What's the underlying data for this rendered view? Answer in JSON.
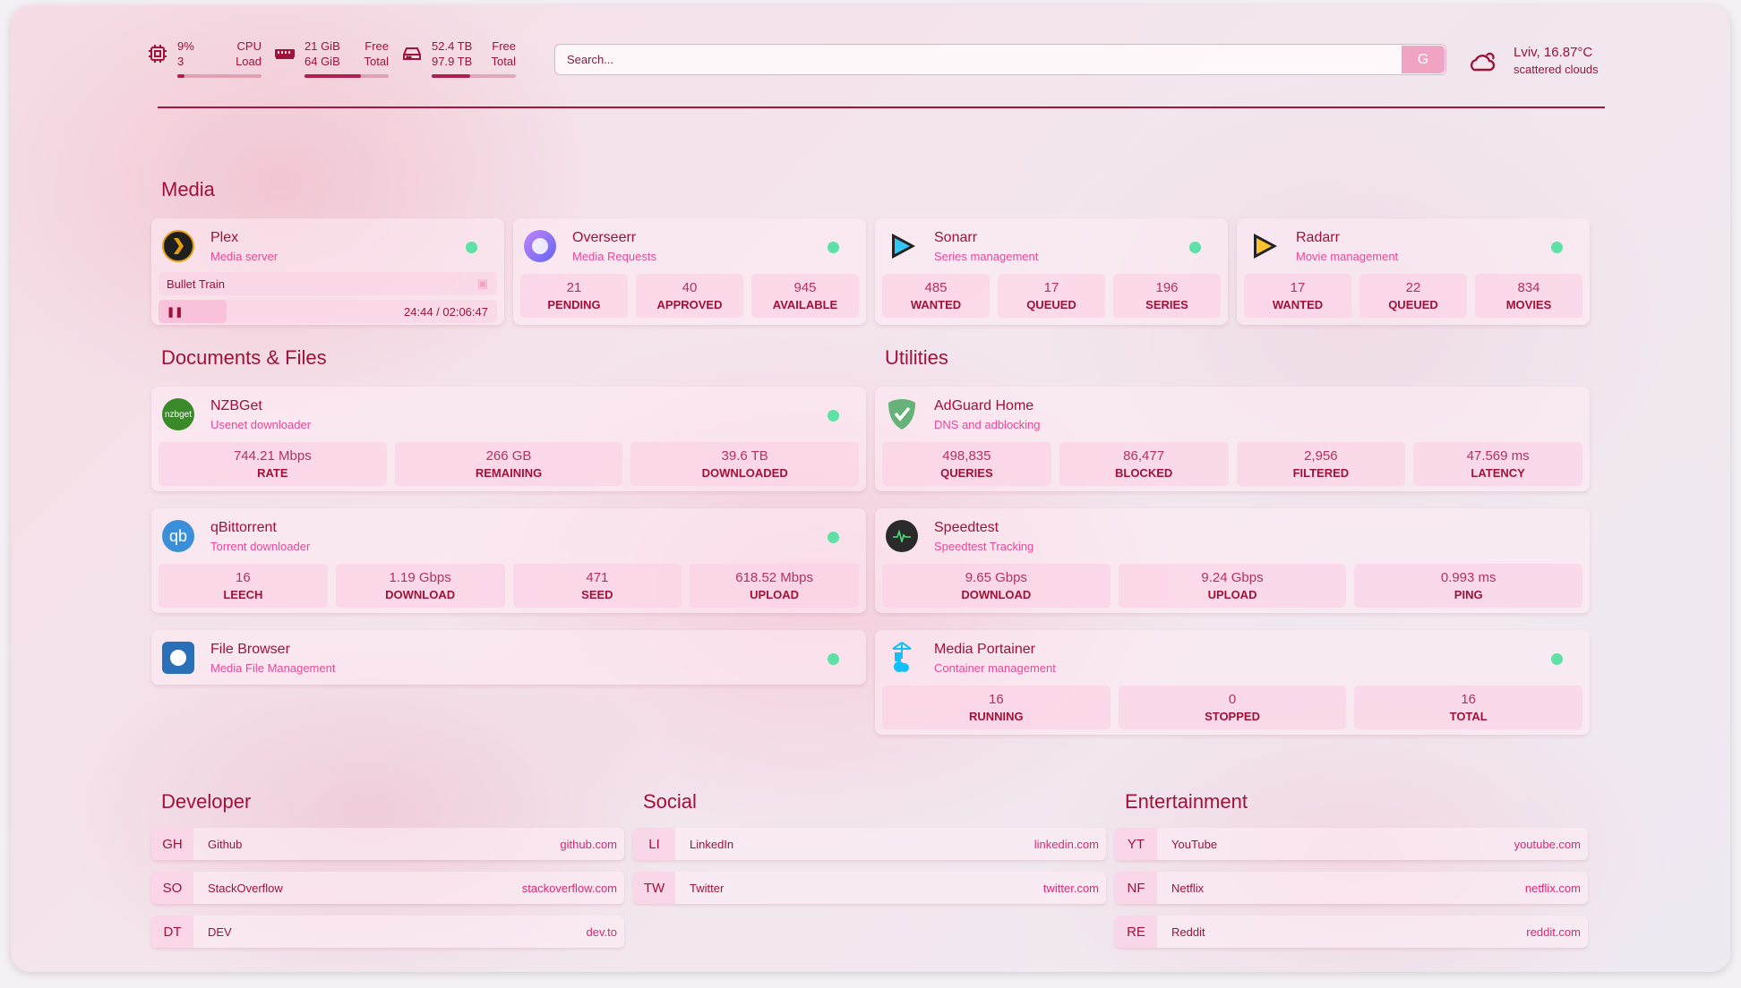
{
  "top": {
    "cpu": {
      "icon": "cpu-icon",
      "v1": "9%",
      "v2": "3",
      "k1": "CPU",
      "k2": "Load",
      "percent": 9
    },
    "mem": {
      "icon": "memory-icon",
      "v1": "21 GiB",
      "v2": "64 GiB",
      "k1": "Free",
      "k2": "Total",
      "percent": 67
    },
    "disk": {
      "icon": "disk-icon",
      "v1": "52.4 TB",
      "v2": "97.9 TB",
      "k1": "Free",
      "k2": "Total",
      "percent": 46
    },
    "search": {
      "placeholder": "Search...",
      "provider": "G"
    },
    "weather": {
      "icon": "cloud-icon",
      "location_temp": "Lviv, 16.87°C",
      "condition": "scattered clouds"
    }
  },
  "colors": {
    "accent": "#9f1239",
    "subtitle": "#ec4899",
    "status_ok": "#5fe0a6"
  },
  "groups": {
    "media": "Media",
    "docs": "Documents & Files",
    "utilities": "Utilities",
    "developer": "Developer",
    "social": "Social",
    "entertainment": "Entertainment"
  },
  "services": {
    "plex": {
      "name": "Plex",
      "desc": "Media server",
      "now_playing": "Bullet Train",
      "time": "24:44 / 02:06:47",
      "progress": 20
    },
    "overseerr": {
      "name": "Overseerr",
      "desc": "Media Requests",
      "stats": [
        {
          "v": "21",
          "k": "PENDING"
        },
        {
          "v": "40",
          "k": "APPROVED"
        },
        {
          "v": "945",
          "k": "AVAILABLE"
        }
      ]
    },
    "sonarr": {
      "name": "Sonarr",
      "desc": "Series management",
      "stats": [
        {
          "v": "485",
          "k": "WANTED"
        },
        {
          "v": "17",
          "k": "QUEUED"
        },
        {
          "v": "196",
          "k": "SERIES"
        }
      ]
    },
    "radarr": {
      "name": "Radarr",
      "desc": "Movie management",
      "stats": [
        {
          "v": "17",
          "k": "WANTED"
        },
        {
          "v": "22",
          "k": "QUEUED"
        },
        {
          "v": "834",
          "k": "MOVIES"
        }
      ]
    },
    "nzbget": {
      "name": "NZBGet",
      "desc": "Usenet downloader",
      "logo_text": "nzbget",
      "stats": [
        {
          "v": "744.21 Mbps",
          "k": "RATE"
        },
        {
          "v": "266 GB",
          "k": "REMAINING"
        },
        {
          "v": "39.6 TB",
          "k": "DOWNLOADED"
        }
      ]
    },
    "qbittorrent": {
      "name": "qBittorrent",
      "desc": "Torrent downloader",
      "logo_text": "qb",
      "stats": [
        {
          "v": "16",
          "k": "LEECH"
        },
        {
          "v": "1.19 Gbps",
          "k": "DOWNLOAD"
        },
        {
          "v": "471",
          "k": "SEED"
        },
        {
          "v": "618.52 Mbps",
          "k": "UPLOAD"
        }
      ]
    },
    "filebrowser": {
      "name": "File Browser",
      "desc": "Media File Management"
    },
    "adguard": {
      "name": "AdGuard Home",
      "desc": "DNS and adblocking",
      "stats": [
        {
          "v": "498,835",
          "k": "QUERIES"
        },
        {
          "v": "86,477",
          "k": "BLOCKED"
        },
        {
          "v": "2,956",
          "k": "FILTERED"
        },
        {
          "v": "47.569 ms",
          "k": "LATENCY"
        }
      ]
    },
    "speedtest": {
      "name": "Speedtest",
      "desc": "Speedtest Tracking",
      "stats": [
        {
          "v": "9.65 Gbps",
          "k": "DOWNLOAD"
        },
        {
          "v": "9.24 Gbps",
          "k": "UPLOAD"
        },
        {
          "v": "0.993 ms",
          "k": "PING"
        }
      ]
    },
    "portainer": {
      "name": "Media Portainer",
      "desc": "Container management",
      "stats": [
        {
          "v": "16",
          "k": "RUNNING"
        },
        {
          "v": "0",
          "k": "STOPPED"
        },
        {
          "v": "16",
          "k": "TOTAL"
        }
      ]
    }
  },
  "bookmarks": {
    "developer": [
      {
        "abbr": "GH",
        "name": "Github",
        "url": "github.com"
      },
      {
        "abbr": "SO",
        "name": "StackOverflow",
        "url": "stackoverflow.com"
      },
      {
        "abbr": "DT",
        "name": "DEV",
        "url": "dev.to"
      }
    ],
    "social": [
      {
        "abbr": "LI",
        "name": "LinkedIn",
        "url": "linkedin.com"
      },
      {
        "abbr": "TW",
        "name": "Twitter",
        "url": "twitter.com"
      }
    ],
    "entertainment": [
      {
        "abbr": "YT",
        "name": "YouTube",
        "url": "youtube.com"
      },
      {
        "abbr": "NF",
        "name": "Netflix",
        "url": "netflix.com"
      },
      {
        "abbr": "RE",
        "name": "Reddit",
        "url": "reddit.com"
      }
    ]
  }
}
